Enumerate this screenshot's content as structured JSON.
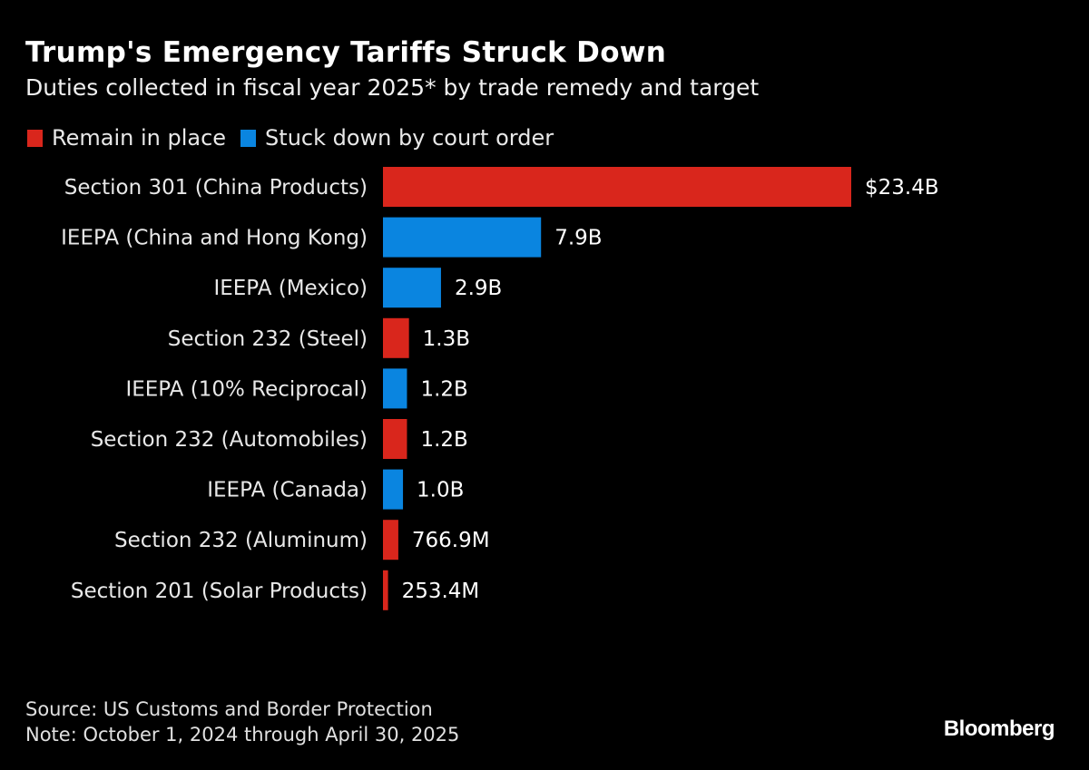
{
  "title": "Trump's Emergency Tariffs Struck Down",
  "subtitle": "Duties collected in fiscal year 2025* by trade remedy and target",
  "colors": {
    "remain": "#d9261c",
    "struck": "#0a85e0",
    "background": "#000000"
  },
  "chart_data": {
    "type": "bar",
    "orientation": "horizontal",
    "title": "Trump's Emergency Tariffs Struck Down",
    "subtitle": "Duties collected in fiscal year 2025* by trade remedy and target",
    "legend": [
      {
        "key": "remain",
        "label": "Remain in place"
      },
      {
        "key": "struck",
        "label": "Stuck down by court order"
      }
    ],
    "legend_position": "top-left",
    "categories": [
      "Section 301 (China Products)",
      "IEEPA (China and Hong Kong)",
      "IEEPA (Mexico)",
      "Section 232 (Steel)",
      "IEEPA (10% Reciprocal)",
      "Section 232 (Automobiles)",
      "IEEPA (Canada)",
      "Section 232 (Aluminum)",
      "Section 201 (Solar Products)"
    ],
    "values": [
      23.4,
      7.9,
      2.9,
      1.3,
      1.2,
      1.2,
      1.0,
      0.7669,
      0.2534
    ],
    "units": "USD billions",
    "groups": [
      "remain",
      "struck",
      "struck",
      "remain",
      "struck",
      "remain",
      "struck",
      "remain",
      "remain"
    ],
    "data_labels": [
      "$23.4B",
      "7.9B",
      "2.9B",
      "1.3B",
      "1.2B",
      "1.2B",
      "1.0B",
      "766.9M",
      "253.4M"
    ],
    "xlim": [
      0,
      23.4
    ],
    "grid": false,
    "xlabel": "",
    "ylabel": ""
  },
  "footer": {
    "source": "Source: US Customs and Border Protection",
    "note": "Note: October 1, 2024 through April 30, 2025"
  },
  "logo": "Bloomberg"
}
